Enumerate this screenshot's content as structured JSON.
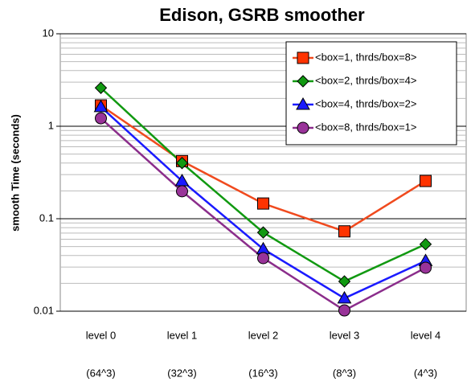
{
  "chart_data": {
    "type": "line",
    "title": "Edison, GSRB smoother",
    "y_label": "smooth Time (seconds)",
    "categories": [
      [
        "level 0",
        "(64^3)"
      ],
      [
        "level 1",
        "(32^3)"
      ],
      [
        "level 2",
        "(16^3)"
      ],
      [
        "level 3",
        "(8^3)"
      ],
      [
        "level 4",
        "(4^3)"
      ]
    ],
    "series": [
      {
        "name": "<box=1, thrds/box=8>",
        "color": "#ff3300",
        "line_color": "#f04a1e",
        "marker": "square",
        "values": [
          1.68,
          0.42,
          0.146,
          0.073,
          0.256
        ]
      },
      {
        "name": "<box=2, thrds/box=4>",
        "color": "#119911",
        "line_color": "#119911",
        "marker": "diamond",
        "values": [
          2.6,
          0.4,
          0.071,
          0.021,
          0.053
        ]
      },
      {
        "name": "<box=4, thrds/box=2>",
        "color": "#1a1aff",
        "line_color": "#1a1aff",
        "marker": "triangle",
        "values": [
          1.62,
          0.256,
          0.047,
          0.0138,
          0.035
        ]
      },
      {
        "name": "<box=8, thrds/box=1>",
        "color": "#993399",
        "line_color": "#8b2d8b",
        "marker": "circle",
        "values": [
          1.22,
          0.198,
          0.0375,
          0.0102,
          0.0295
        ]
      }
    ],
    "log_y": true,
    "ylim": [
      0.01,
      10
    ],
    "yticks": [
      0.01,
      0.1,
      1,
      10
    ],
    "grid": true,
    "legend": "upper right"
  }
}
